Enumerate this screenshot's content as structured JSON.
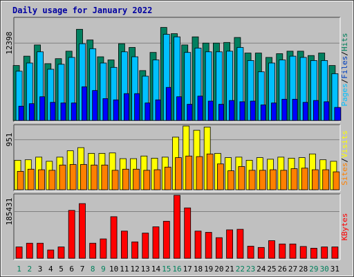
{
  "chart_data": [
    {
      "type": "bar",
      "title": "Daily usage for January 2022",
      "categories": [
        "1",
        "2",
        "3",
        "4",
        "5",
        "6",
        "7",
        "8",
        "9",
        "10",
        "11",
        "12",
        "13",
        "14",
        "15",
        "16",
        "17",
        "18",
        "19",
        "20",
        "21",
        "22",
        "23",
        "24",
        "25",
        "26",
        "27",
        "28",
        "29",
        "30",
        "31"
      ],
      "weekend_days": [
        1,
        2,
        8,
        9,
        15,
        16,
        22,
        23,
        29,
        30
      ],
      "colors": {
        "weekday_tick": "#000000",
        "weekend_tick": "#00805c",
        "background": "#c0c0c0",
        "plot_background": "#c0c0c0",
        "gridline": "#808080"
      }
    },
    {
      "type": "bar",
      "panel": "top",
      "ytick_label": "12398",
      "ytick_value": 12398,
      "ylim": [
        0,
        16300
      ],
      "side_labels": [
        {
          "text": "Pages",
          "color": "#00c0ff"
        },
        {
          "text": "/",
          "color": "#000000"
        },
        {
          "text": "Files",
          "color": "#0040c0"
        },
        {
          "text": "/",
          "color": "#000000"
        },
        {
          "text": "Hits",
          "color": "#00805c"
        }
      ],
      "series": [
        {
          "name": "Hits",
          "color": "#008060",
          "values": [
            8800,
            10300,
            12100,
            9100,
            9900,
            11100,
            14600,
            12900,
            10200,
            9700,
            12300,
            11700,
            8000,
            10900,
            14900,
            13900,
            12100,
            13400,
            12400,
            12400,
            12500,
            13300,
            10800,
            10800,
            10100,
            10700,
            11100,
            11100,
            10400,
            10800,
            8800
          ]
        },
        {
          "name": "Files",
          "color": "#00c0ff",
          "values": [
            7900,
            9200,
            11000,
            8200,
            9000,
            10100,
            12300,
            11500,
            9200,
            8500,
            11000,
            10200,
            7100,
            9700,
            13800,
            13400,
            10900,
            11600,
            11000,
            11000,
            11100,
            11700,
            9600,
            7800,
            9200,
            9700,
            10300,
            10100,
            9600,
            9600,
            7500
          ]
        },
        {
          "name": "Pages",
          "color": "#0000ff",
          "values": [
            2300,
            2700,
            3800,
            2900,
            2800,
            2800,
            5400,
            4800,
            3500,
            3300,
            4300,
            4300,
            2800,
            3300,
            5300,
            3800,
            2600,
            3900,
            3100,
            2600,
            3200,
            3000,
            3100,
            2500,
            2800,
            3400,
            3400,
            2900,
            3200,
            3000,
            2100
          ]
        }
      ]
    },
    {
      "type": "bar",
      "panel": "middle",
      "ytick_label": "951",
      "ytick_value": 951,
      "ylim": [
        0,
        1210
      ],
      "side_labels": [
        {
          "text": "Sites",
          "color": "#ff8000"
        },
        {
          "text": "/",
          "color": "#000000"
        },
        {
          "text": "Visits",
          "color": "#ffff00"
        }
      ],
      "series": [
        {
          "name": "Visits",
          "color": "#ffff00",
          "values": [
            560,
            570,
            620,
            540,
            620,
            740,
            800,
            690,
            690,
            700,
            590,
            590,
            640,
            600,
            620,
            1000,
            1210,
            1130,
            1190,
            690,
            610,
            620,
            560,
            610,
            580,
            620,
            600,
            610,
            680,
            570,
            540
          ]
        },
        {
          "name": "Sites",
          "color": "#ff8000",
          "values": [
            350,
            390,
            380,
            370,
            470,
            480,
            480,
            470,
            470,
            370,
            390,
            390,
            370,
            380,
            430,
            610,
            640,
            630,
            680,
            490,
            360,
            440,
            370,
            370,
            380,
            370,
            400,
            410,
            380,
            380,
            340
          ]
        }
      ]
    },
    {
      "type": "bar",
      "panel": "bottom",
      "ytick_label": "185431",
      "ytick_value": 185431,
      "ylim": [
        0,
        250000
      ],
      "side_labels": [
        {
          "text": "KBytes",
          "color": "#ff0000"
        }
      ],
      "series": [
        {
          "name": "KBytes",
          "color": "#ff0000",
          "values": [
            45000,
            60000,
            60000,
            33000,
            45000,
            190000,
            217000,
            60000,
            77000,
            165000,
            108000,
            65000,
            100000,
            125000,
            147000,
            250000,
            200000,
            108000,
            103000,
            82000,
            113000,
            115000,
            48000,
            43000,
            70000,
            57000,
            57000,
            47000,
            40000,
            45000,
            45000
          ]
        }
      ]
    }
  ]
}
